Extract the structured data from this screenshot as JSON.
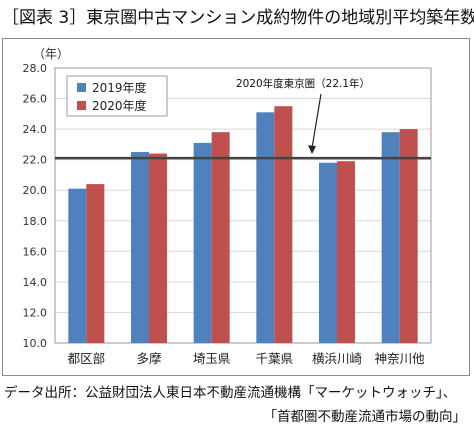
{
  "title": "［図表 3］東京圏中古マンション成約物件の地域別平均築年数",
  "source_line1": "データ出所：公益財団法人東日本不動産流通機構「マーケットウォッチ」、",
  "source_line2": "「首都圏不動産流通市場の動向」",
  "chart_data": {
    "type": "bar",
    "unit_label": "（年）",
    "categories": [
      "都区部",
      "多摩",
      "埼玉県",
      "千葉県",
      "横浜川崎",
      "神奈川他"
    ],
    "series": [
      {
        "name": "2019年度",
        "values": [
          20.1,
          22.5,
          23.1,
          25.1,
          21.8,
          23.8
        ],
        "color": "#4f81bd"
      },
      {
        "name": "2020年度",
        "values": [
          20.4,
          22.4,
          23.8,
          25.5,
          21.9,
          24.0
        ],
        "color": "#c0504d"
      }
    ],
    "ylim": [
      10.0,
      28.0
    ],
    "yticks": [
      "10.0",
      "12.0",
      "14.0",
      "16.0",
      "18.0",
      "20.0",
      "22.0",
      "24.0",
      "26.0",
      "28.0"
    ],
    "reference_line": {
      "value": 22.1,
      "label": "2020年度東京圏（22.1年）",
      "color": "#444444"
    },
    "grid": true,
    "legend": "top-left"
  }
}
